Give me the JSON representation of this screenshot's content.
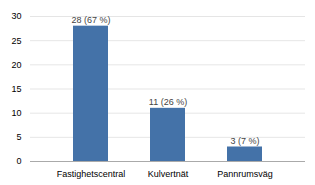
{
  "chart_data": {
    "type": "bar",
    "categories": [
      "Fastighetscentral",
      "Kulvertnät",
      "Pannrumsväg"
    ],
    "values": [
      28,
      11,
      3
    ],
    "value_labels": [
      "28 (67 %)",
      "11 (26 %)",
      "3 (7 %)"
    ],
    "color": "#4472a8",
    "ylim": [
      0,
      30
    ],
    "yticks": [
      0,
      5,
      10,
      15,
      20,
      25,
      30
    ],
    "grid": true,
    "data_labels": true
  }
}
